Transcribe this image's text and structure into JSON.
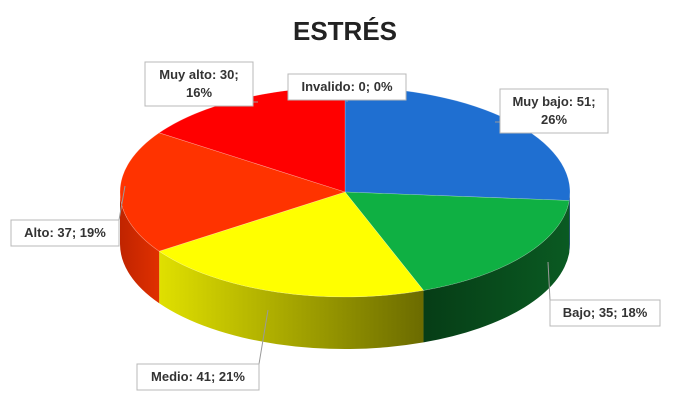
{
  "chart_data": {
    "type": "pie",
    "title": "ESTRÉS",
    "slices": [
      {
        "label": "Muy bajo",
        "value": 51,
        "percent": "26%",
        "color": "#1f6fd1",
        "side_color": "#0d3a73",
        "text": "Muy bajo: 51; 26%"
      },
      {
        "label": "Bajo",
        "value": 35,
        "percent": "18%",
        "color": "#0fb043",
        "side_color": "#064a1b",
        "text": "Bajo; 35; 18%"
      },
      {
        "label": "Medio",
        "value": 41,
        "percent": "21%",
        "color": "#ffff00",
        "side_color": "#8a8a00",
        "text": "Medio: 41; 21%"
      },
      {
        "label": "Alto",
        "value": 37,
        "percent": "19%",
        "color": "#ff3300",
        "side_color": "#a82000",
        "text": "Alto: 37; 19%"
      },
      {
        "label": "Muy alto",
        "value": 30,
        "percent": "16%",
        "color": "#ff0000",
        "side_color": "#a80000",
        "text": "Muy alto: 30; 16%"
      },
      {
        "label": "Invalido",
        "value": 0,
        "percent": "0%",
        "color": "#7f7f7f",
        "side_color": "#555555",
        "text": "Invalido: 0; 0%"
      }
    ],
    "label_lines": [
      [
        "Muy bajo: 51;",
        "26%"
      ],
      [
        "Bajo; 35; 18%"
      ],
      [
        "Medio: 41; 21%"
      ],
      [
        "Alto: 37; 19%"
      ],
      [
        "Muy alto: 30;",
        "16%"
      ],
      [
        "Invalido: 0; 0%"
      ]
    ],
    "legend": "none",
    "style": "3d"
  }
}
